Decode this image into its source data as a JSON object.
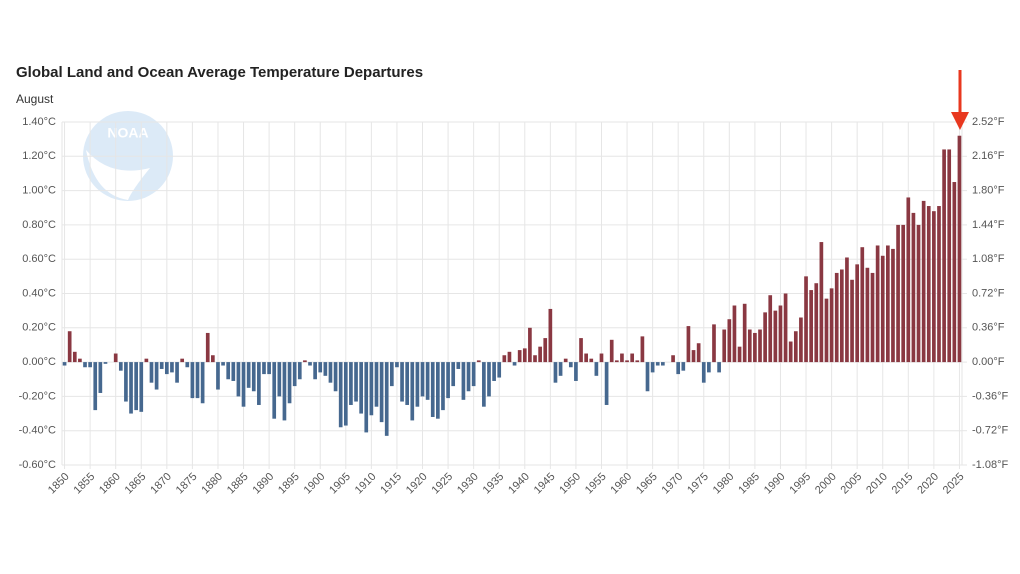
{
  "chart_data": {
    "type": "bar",
    "title": "Global Land and Ocean Average Temperature Departures",
    "subtitle": "August",
    "categories": [
      "1850",
      null,
      null,
      null,
      null,
      "1855",
      null,
      null,
      null,
      null,
      "1860",
      null,
      null,
      null,
      null,
      "1865",
      null,
      null,
      null,
      null,
      "1870",
      null,
      null,
      null,
      null,
      "1875",
      null,
      null,
      null,
      null,
      "1880",
      null,
      null,
      null,
      null,
      "1885",
      null,
      null,
      null,
      null,
      "1890",
      null,
      null,
      null,
      null,
      "1895",
      null,
      null,
      null,
      null,
      "1900",
      null,
      null,
      null,
      null,
      "1905",
      null,
      null,
      null,
      null,
      "1910",
      null,
      null,
      null,
      null,
      "1915",
      null,
      null,
      null,
      null,
      "1920",
      null,
      null,
      null,
      null,
      "1925",
      null,
      null,
      null,
      null,
      "1930",
      null,
      null,
      null,
      null,
      "1935",
      null,
      null,
      null,
      null,
      "1940",
      null,
      null,
      null,
      null,
      "1945",
      null,
      null,
      null,
      null,
      "1950",
      null,
      null,
      null,
      null,
      "1955",
      null,
      null,
      null,
      null,
      "1960",
      null,
      null,
      null,
      null,
      "1965",
      null,
      null,
      null,
      null,
      "1970",
      null,
      null,
      null,
      null,
      "1975",
      null,
      null,
      null,
      null,
      "1980",
      null,
      null,
      null,
      null,
      "1985",
      null,
      null,
      null,
      null,
      "1990",
      null,
      null,
      null,
      null,
      "1995",
      null,
      null,
      null,
      null,
      "2000",
      null,
      null,
      null,
      null,
      "2005",
      null,
      null,
      null,
      null,
      "2010",
      null,
      null,
      null,
      null,
      "2015",
      null,
      null,
      null,
      null,
      "2020",
      null,
      null,
      null,
      null,
      "2025"
    ],
    "values": [
      -0.02,
      0.18,
      0.06,
      0.02,
      -0.03,
      -0.03,
      -0.28,
      -0.18,
      -0.01,
      0.0,
      0.05,
      -0.05,
      -0.23,
      -0.3,
      -0.28,
      -0.29,
      0.02,
      -0.12,
      -0.16,
      -0.04,
      -0.07,
      -0.06,
      -0.12,
      0.02,
      -0.03,
      -0.21,
      -0.21,
      -0.24,
      0.17,
      0.04,
      -0.16,
      -0.02,
      -0.1,
      -0.11,
      -0.2,
      -0.26,
      -0.15,
      -0.17,
      -0.25,
      -0.07,
      -0.07,
      -0.33,
      -0.2,
      -0.34,
      -0.24,
      -0.14,
      -0.1,
      0.01,
      -0.02,
      -0.1,
      -0.06,
      -0.08,
      -0.12,
      -0.17,
      -0.38,
      -0.37,
      -0.25,
      -0.23,
      -0.3,
      -0.41,
      -0.31,
      -0.26,
      -0.35,
      -0.43,
      -0.14,
      -0.03,
      -0.23,
      -0.25,
      -0.34,
      -0.26,
      -0.2,
      -0.22,
      -0.32,
      -0.33,
      -0.28,
      -0.21,
      -0.14,
      -0.04,
      -0.22,
      -0.17,
      -0.14,
      0.01,
      -0.26,
      -0.2,
      -0.11,
      -0.09,
      0.04,
      0.06,
      -0.02,
      0.07,
      0.08,
      0.2,
      0.04,
      0.09,
      0.14,
      0.31,
      -0.12,
      -0.08,
      0.02,
      -0.03,
      -0.11,
      0.14,
      0.05,
      0.02,
      -0.08,
      0.05,
      -0.25,
      0.13,
      0.01,
      0.05,
      0.01,
      0.05,
      0.01,
      0.15,
      -0.17,
      -0.06,
      -0.02,
      -0.02,
      0.0,
      0.04,
      -0.07,
      -0.05,
      0.21,
      0.07,
      0.11,
      -0.12,
      -0.06,
      0.22,
      -0.06,
      0.19,
      0.25,
      0.33,
      0.09,
      0.34,
      0.19,
      0.17,
      0.19,
      0.29,
      0.39,
      0.3,
      0.33,
      0.4,
      0.12,
      0.18,
      0.26,
      0.5,
      0.42,
      0.46,
      0.7,
      0.37,
      0.43,
      0.52,
      0.54,
      0.61,
      0.48,
      0.57,
      0.67,
      0.55,
      0.52,
      0.68,
      0.62,
      0.68,
      0.66,
      0.8,
      0.8,
      0.96,
      0.87,
      0.8,
      0.94,
      0.91,
      0.88,
      0.91,
      1.24,
      1.24,
      1.05,
      1.32
    ],
    "positive_color": "#8a3842",
    "negative_color": "#46688f",
    "ylim": [
      -0.6,
      1.4
    ],
    "yticks": [
      {
        "value": -0.6,
        "label": "-0.60°C"
      },
      {
        "value": -0.4,
        "label": "-0.40°C"
      },
      {
        "value": -0.2,
        "label": "-0.20°C"
      },
      {
        "value": 0,
        "label": "0.00°C"
      },
      {
        "value": 0.2,
        "label": "0.20°C"
      },
      {
        "value": 0.4,
        "label": "0.40°C"
      },
      {
        "value": 0.6,
        "label": "0.60°C"
      },
      {
        "value": 0.8,
        "label": "0.80°C"
      },
      {
        "value": 1.0,
        "label": "1.00°C"
      },
      {
        "value": 1.2,
        "label": "1.20°C"
      },
      {
        "value": 1.4,
        "label": "1.40°C"
      }
    ],
    "y2lim": [
      -1.08,
      2.52
    ],
    "y2ticks": [
      {
        "value": -1.08,
        "label": "-1.08°F"
      },
      {
        "value": -0.72,
        "label": "-0.72°F"
      },
      {
        "value": -0.36,
        "label": "-0.36°F"
      },
      {
        "value": 0,
        "label": "0.00°F"
      },
      {
        "value": 0.36,
        "label": "0.36°F"
      },
      {
        "value": 0.72,
        "label": "0.72°F"
      },
      {
        "value": 1.08,
        "label": "1.08°F"
      },
      {
        "value": 1.44,
        "label": "1.44°F"
      },
      {
        "value": 1.8,
        "label": "1.80°F"
      },
      {
        "value": 2.16,
        "label": "2.16°F"
      },
      {
        "value": 2.52,
        "label": "2.52°F"
      }
    ],
    "grid": true
  }
}
